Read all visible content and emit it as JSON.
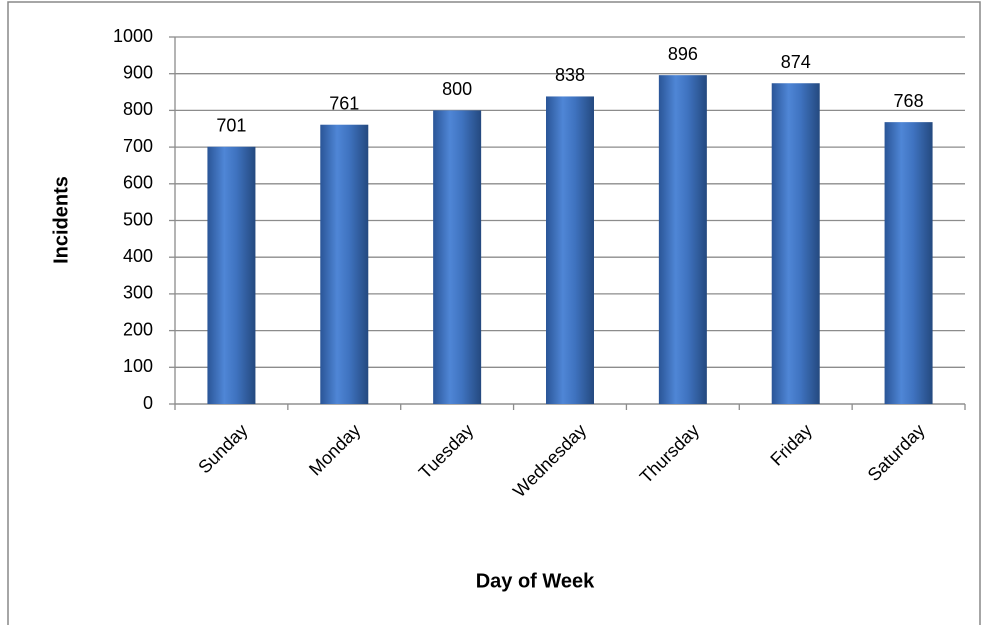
{
  "chart_data": {
    "type": "bar",
    "categories": [
      "Sunday",
      "Monday",
      "Tuesday",
      "Wednesday",
      "Thursday",
      "Friday",
      "Saturday"
    ],
    "values": [
      701,
      761,
      800,
      838,
      896,
      874,
      768
    ],
    "color": "#3f73c0",
    "xlabel": "Day of Week",
    "ylabel": "Incidents",
    "ylim": [
      0,
      1000
    ],
    "yticks": [
      0,
      100,
      200,
      300,
      400,
      500,
      600,
      700,
      800,
      900,
      1000
    ],
    "grid": true
  }
}
